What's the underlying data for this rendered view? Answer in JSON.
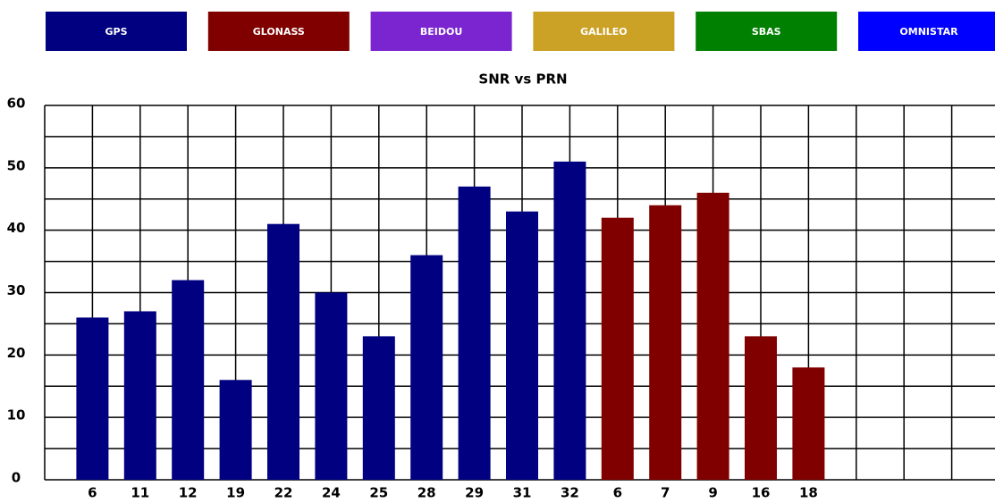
{
  "chart_data": {
    "type": "bar",
    "title": "SNR vs PRN",
    "categories": [
      "6",
      "11",
      "12",
      "19",
      "22",
      "24",
      "25",
      "28",
      "29",
      "31",
      "32",
      "6",
      "7",
      "9",
      "16",
      "18",
      null,
      null,
      null
    ],
    "series": [
      {
        "name": "GPS",
        "color": "#000080",
        "values": [
          26,
          27,
          32,
          16,
          41,
          30,
          23,
          36,
          47,
          43,
          51,
          null,
          null,
          null,
          null,
          null,
          null,
          null,
          null
        ]
      },
      {
        "name": "GLONASS",
        "color": "#800000",
        "values": [
          null,
          null,
          null,
          null,
          null,
          null,
          null,
          null,
          null,
          null,
          null,
          42,
          44,
          46,
          23,
          18,
          null,
          null,
          null
        ]
      },
      {
        "name": "BEIDOU",
        "color": "#7a25d0",
        "values": [
          null,
          null,
          null,
          null,
          null,
          null,
          null,
          null,
          null,
          null,
          null,
          null,
          null,
          null,
          null,
          null,
          null,
          null,
          null
        ]
      },
      {
        "name": "GALILEO",
        "color": "#cca226",
        "values": [
          null,
          null,
          null,
          null,
          null,
          null,
          null,
          null,
          null,
          null,
          null,
          null,
          null,
          null,
          null,
          null,
          null,
          null,
          null
        ]
      },
      {
        "name": "SBAS",
        "color": "#008000",
        "values": [
          null,
          null,
          null,
          null,
          null,
          null,
          null,
          null,
          null,
          null,
          null,
          null,
          null,
          null,
          null,
          null,
          null,
          null,
          null
        ]
      },
      {
        "name": "OMNISTAR",
        "color": "#0000ff",
        "values": [
          null,
          null,
          null,
          null,
          null,
          null,
          null,
          null,
          null,
          null,
          null,
          null,
          null,
          null,
          null,
          null,
          null,
          null,
          null
        ]
      }
    ],
    "ylim": [
      0,
      60
    ],
    "yticks": [
      0,
      10,
      20,
      30,
      40,
      50,
      60
    ],
    "yminorticks": [
      5,
      15,
      25,
      35,
      45,
      55
    ],
    "grid": true
  }
}
